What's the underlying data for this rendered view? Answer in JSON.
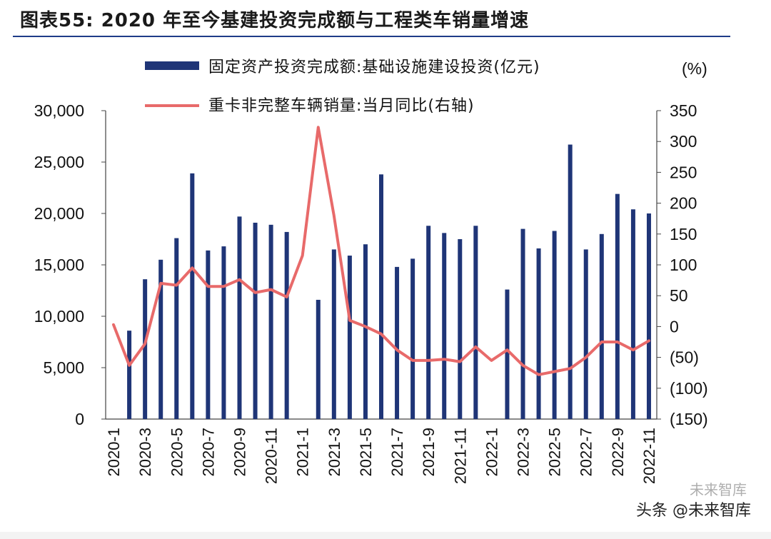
{
  "figure": {
    "title_label": "图表55:",
    "title_text": "2020 年至今基建投资完成额与工程类车销量增速",
    "right_axis_unit": "(%)",
    "watermark_text": "头条 @未来智库",
    "watermark_faint": "未来智库"
  },
  "chart_data": {
    "type": "bar+line",
    "categories": [
      "2020-1",
      "2020-2",
      "2020-3",
      "2020-4",
      "2020-5",
      "2020-6",
      "2020-7",
      "2020-8",
      "2020-9",
      "2020-10",
      "2020-11",
      "2020-12",
      "2021-1",
      "2021-2",
      "2021-3",
      "2021-4",
      "2021-5",
      "2021-6",
      "2021-7",
      "2021-8",
      "2021-9",
      "2021-10",
      "2021-11",
      "2021-12",
      "2022-1",
      "2022-2",
      "2022-3",
      "2022-4",
      "2022-5",
      "2022-6",
      "2022-7",
      "2022-8",
      "2022-9",
      "2022-10",
      "2022-11"
    ],
    "tick_labels": [
      "2020-1",
      "2020-3",
      "2020-5",
      "2020-7",
      "2020-9",
      "2020-11",
      "2021-1",
      "2021-3",
      "2021-5",
      "2021-7",
      "2021-9",
      "2021-11",
      "2022-1",
      "2022-3",
      "2022-5",
      "2022-7",
      "2022-9",
      "2022-11"
    ],
    "series": [
      {
        "name": "固定资产投资完成额:基础设施建设投资(亿元)",
        "kind": "bar",
        "axis": "left",
        "color": "#1f3577",
        "values": [
          null,
          8600,
          13600,
          15500,
          17600,
          23900,
          16400,
          16800,
          19700,
          19100,
          18900,
          18200,
          null,
          11600,
          16500,
          15900,
          17000,
          23800,
          14800,
          15600,
          18800,
          18100,
          17500,
          18800,
          null,
          12600,
          18500,
          16600,
          18300,
          26700,
          16500,
          18000,
          21900,
          20400,
          20000
        ]
      },
      {
        "name": "重卡非完整车辆销量:当月同比(右轴)",
        "kind": "line",
        "axis": "right",
        "color": "#e86a6a",
        "values": [
          3,
          -63,
          -28,
          70,
          67,
          95,
          65,
          65,
          76,
          55,
          60,
          48,
          115,
          323,
          180,
          10,
          0,
          -12,
          -38,
          -55,
          -55,
          -53,
          -57,
          -33,
          -55,
          -38,
          -63,
          -78,
          -73,
          -68,
          -50,
          -25,
          -25,
          -38,
          -23
        ]
      }
    ],
    "left_axis": {
      "min": 0,
      "max": 30000,
      "ticks": [
        "0",
        "5,000",
        "10,000",
        "15,000",
        "20,000",
        "25,000",
        "30,000"
      ]
    },
    "right_axis": {
      "min": -150,
      "max": 350,
      "ticks": [
        "(150)",
        "(100)",
        "(50)",
        "0",
        "50",
        "100",
        "150",
        "200",
        "250",
        "300",
        "350"
      ]
    },
    "legend": [
      {
        "label": "固定资产投资完成额:基础设施建设投资(亿元)",
        "kind": "bar",
        "color": "#1f3577"
      },
      {
        "label": "重卡非完整车辆销量:当月同比(右轴)",
        "kind": "line",
        "color": "#e86a6a"
      }
    ]
  }
}
